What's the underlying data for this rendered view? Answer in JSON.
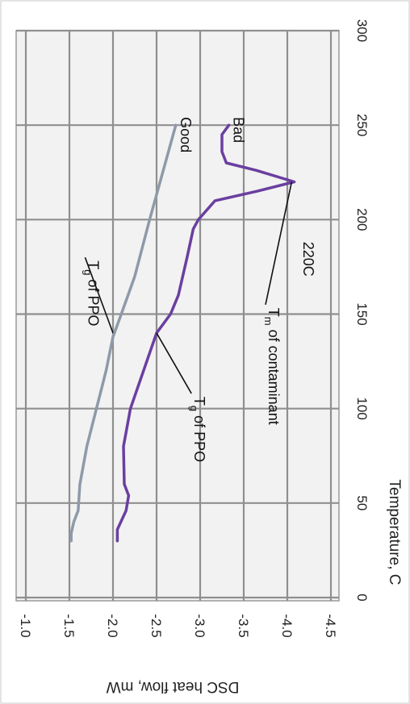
{
  "chart_data": {
    "type": "line",
    "title": "",
    "xlabel": "Temperature, C",
    "ylabel": "DSC heat flow, mW",
    "xlim": [
      0,
      300
    ],
    "ylim": [
      -1.0,
      -4.5
    ],
    "x_ticks": [
      "0",
      "50",
      "100",
      "150",
      "200",
      "250",
      "300"
    ],
    "y_ticks": [
      "-1.0",
      "-1.5",
      "-2.0",
      "-2.5",
      "-3.0",
      "-3.5",
      "-4.0",
      "-4.5"
    ],
    "grid": true,
    "orientation": "rotated 90° clockwise (temperature increases upward)",
    "series": [
      {
        "name": "Good",
        "color": "#8e9aaa",
        "points": [
          [
            30,
            -1.52
          ],
          [
            34,
            -1.52
          ],
          [
            40,
            -1.55
          ],
          [
            46,
            -1.6
          ],
          [
            60,
            -1.62
          ],
          [
            80,
            -1.7
          ],
          [
            100,
            -1.81
          ],
          [
            120,
            -1.92
          ],
          [
            138,
            -2.0
          ],
          [
            148,
            -2.08
          ],
          [
            170,
            -2.25
          ],
          [
            200,
            -2.42
          ],
          [
            225,
            -2.57
          ],
          [
            250,
            -2.72
          ]
        ]
      },
      {
        "name": "Bad",
        "color": "#6a3fa0",
        "points": [
          [
            30,
            -2.05
          ],
          [
            36,
            -2.05
          ],
          [
            46,
            -2.15
          ],
          [
            54,
            -2.18
          ],
          [
            60,
            -2.13
          ],
          [
            80,
            -2.12
          ],
          [
            100,
            -2.2
          ],
          [
            120,
            -2.35
          ],
          [
            140,
            -2.5
          ],
          [
            150,
            -2.66
          ],
          [
            160,
            -2.75
          ],
          [
            180,
            -2.85
          ],
          [
            195,
            -2.92
          ],
          [
            200,
            -2.98
          ],
          [
            210,
            -3.17
          ],
          [
            215,
            -3.65
          ],
          [
            220,
            -4.08
          ],
          [
            226,
            -3.65
          ],
          [
            230,
            -3.3
          ],
          [
            236,
            -3.25
          ],
          [
            245,
            -3.25
          ],
          [
            250,
            -3.33
          ]
        ]
      }
    ],
    "annotations": [
      {
        "id": "tg_good",
        "text_main": "T",
        "text_sub": "g",
        "text_rest": " of PPO",
        "target": [
          140,
          -2.0
        ],
        "label_at": [
          180,
          -1.68
        ]
      },
      {
        "id": "tg_bad",
        "text_main": "T",
        "text_sub": "g",
        "text_rest": " of PPO",
        "target": [
          140,
          -2.5
        ],
        "label_at": [
          108,
          -2.9
        ]
      },
      {
        "id": "tm",
        "text_main": "T",
        "text_sub": "m",
        "text_rest": " of contaminant",
        "target": [
          220,
          -4.05
        ],
        "label_at": [
          155,
          -3.75
        ]
      },
      {
        "id": "tm_value",
        "text_main": "220C",
        "text_sub": "",
        "text_rest": "",
        "target": null,
        "label_at": [
          190,
          -4.15
        ]
      }
    ]
  }
}
